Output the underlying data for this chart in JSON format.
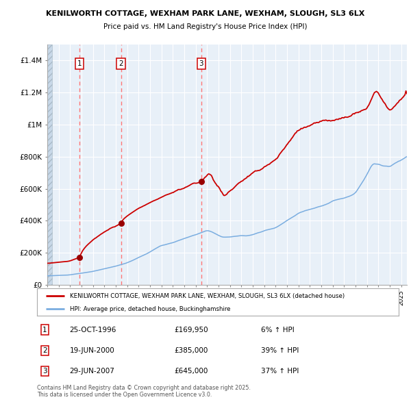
{
  "title1": "KENILWORTH COTTAGE, WEXHAM PARK LANE, WEXHAM, SLOUGH, SL3 6LX",
  "title2": "Price paid vs. HM Land Registry's House Price Index (HPI)",
  "red_label": "KENILWORTH COTTAGE, WEXHAM PARK LANE, WEXHAM, SLOUGH, SL3 6LX (detached house)",
  "blue_label": "HPI: Average price, detached house, Buckinghamshire",
  "purchases": [
    {
      "num": 1,
      "date": "25-OCT-1996",
      "price": 169950,
      "pct": "6%",
      "year": 1996.82
    },
    {
      "num": 2,
      "date": "19-JUN-2000",
      "price": 385000,
      "pct": "39%",
      "year": 2000.46
    },
    {
      "num": 3,
      "date": "29-JUN-2007",
      "price": 645000,
      "pct": "37%",
      "year": 2007.49
    }
  ],
  "footnote": "Contains HM Land Registry data © Crown copyright and database right 2025.\nThis data is licensed under the Open Government Licence v3.0.",
  "ylim": [
    0,
    1500000
  ],
  "yticks": [
    0,
    200000,
    400000,
    600000,
    800000,
    1000000,
    1200000,
    1400000
  ],
  "ytick_labels": [
    "£0",
    "£200K",
    "£400K",
    "£600K",
    "£800K",
    "£1M",
    "£1.2M",
    "£1.4M"
  ],
  "red_color": "#cc0000",
  "blue_color": "#7aade0",
  "bg_color": "#e8f0f8",
  "hatch_color": "#c8d8e8",
  "grid_color": "#ffffff",
  "dashed_color": "#ff7777",
  "purchase_marker_color": "#990000",
  "start_year": 1994.0,
  "end_year": 2025.5
}
